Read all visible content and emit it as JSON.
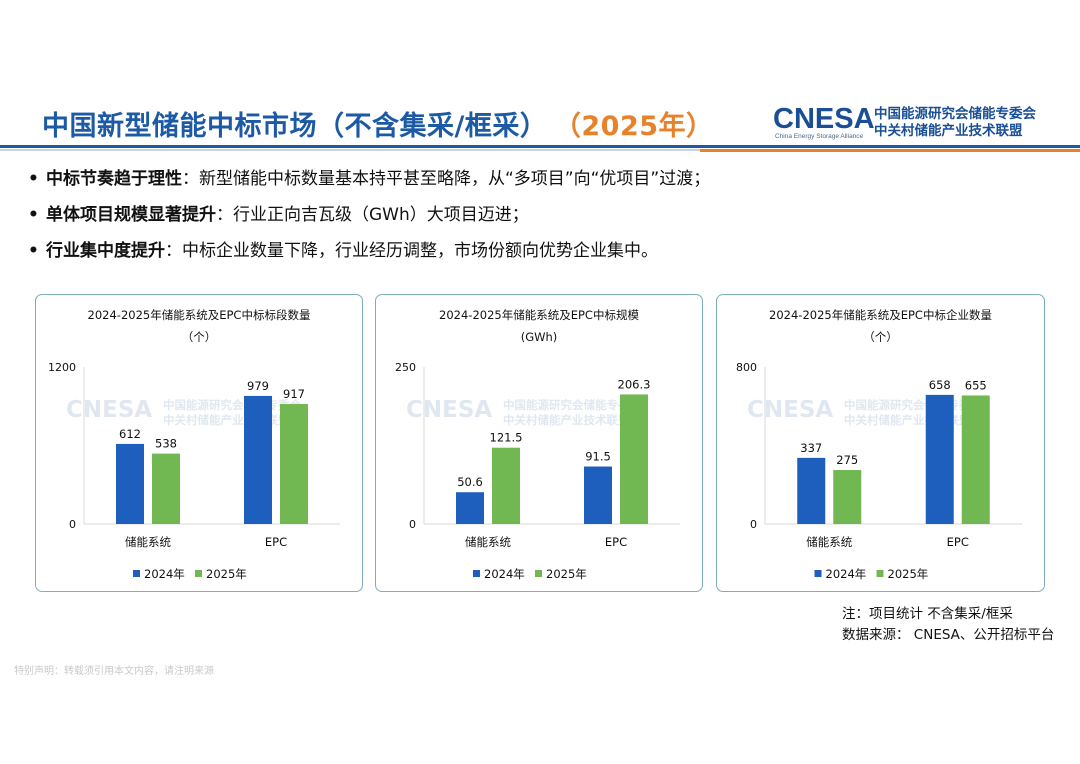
{
  "header": {
    "title": "中国新型储能中标市场（不含集采/框采）",
    "title_year": "（2025年）",
    "logo_text": "CNESA",
    "logo_subtext": "China Energy Storage Alliance",
    "logo_org_line1": "中国能源研究会储能专委会",
    "logo_org_line2": "中关村储能产业技术联盟"
  },
  "bullets": [
    {
      "marker": "•",
      "bold": "中标节奏趋于理性",
      "text": "：新型储能中标数量基本持平甚至略降，从“多项目”向“优项目”过渡；"
    },
    {
      "marker": "•",
      "bold": "单体项目规模显著提升",
      "text": "：行业正向吉瓦级（GWh）大项目迈进；"
    },
    {
      "marker": "•",
      "bold": "行业集中度提升",
      "text": "：中标企业数量下降，行业经历调整，市场份额向优势企业集中。"
    }
  ],
  "colors": {
    "series_2024": "#1e5fbd",
    "series_2025": "#72b852",
    "title_blue": "#1c5aa6",
    "accent_orange": "#e8822a"
  },
  "chart_data": [
    {
      "type": "bar",
      "title": "2024-2025年储能系统及EPC中标标段数量",
      "unit": "（个）",
      "categories": [
        "储能系统",
        "EPC"
      ],
      "series": [
        {
          "name": "2024年",
          "values": [
            612,
            979
          ]
        },
        {
          "name": "2025年",
          "values": [
            538,
            917
          ]
        }
      ],
      "ylim": [
        0,
        1200
      ],
      "yticks": [
        "0",
        "1200"
      ],
      "labels": [
        [
          "612",
          "979"
        ],
        [
          "538",
          "917"
        ]
      ],
      "legend": "bottom",
      "watermark_logo": "CNESA",
      "watermark_line1": "中国能源研究会储能专委会",
      "watermark_line2": "中关村储能产业技术联盟"
    },
    {
      "type": "bar",
      "title": "2024-2025年储能系统及EPC中标规模",
      "unit": "(GWh)",
      "categories": [
        "储能系统",
        "EPC"
      ],
      "series": [
        {
          "name": "2024年",
          "values": [
            50.6,
            91.5
          ]
        },
        {
          "name": "2025年",
          "values": [
            121.5,
            206.3
          ]
        }
      ],
      "ylim": [
        0,
        250
      ],
      "yticks": [
        "0",
        "250"
      ],
      "labels": [
        [
          "50.6",
          "91.5"
        ],
        [
          "121.5",
          "206.3"
        ]
      ],
      "legend": "bottom",
      "watermark_logo": "CNESA",
      "watermark_line1": "中国能源研究会储能专委会",
      "watermark_line2": "中关村储能产业技术联盟"
    },
    {
      "type": "bar",
      "title": "2024-2025年储能系统及EPC中标企业数量",
      "unit": "（个）",
      "categories": [
        "储能系统",
        "EPC"
      ],
      "series": [
        {
          "name": "2024年",
          "values": [
            337,
            658
          ]
        },
        {
          "name": "2025年",
          "values": [
            275,
            655
          ]
        }
      ],
      "ylim": [
        0,
        800
      ],
      "yticks": [
        "0",
        "800"
      ],
      "labels": [
        [
          "337",
          "658"
        ],
        [
          "275",
          "655"
        ]
      ],
      "legend": "bottom",
      "watermark_logo": "CNESA",
      "watermark_line1": "中国能源研究会储能专委会",
      "watermark_line2": "中关村储能产业技术联盟"
    }
  ],
  "notes": {
    "line1": "注：项目统计 不含集采/框采",
    "line2": "数据来源： CNESA、公开招标平台"
  },
  "footer": "特别声明：转载须引用本文内容，请注明来源"
}
